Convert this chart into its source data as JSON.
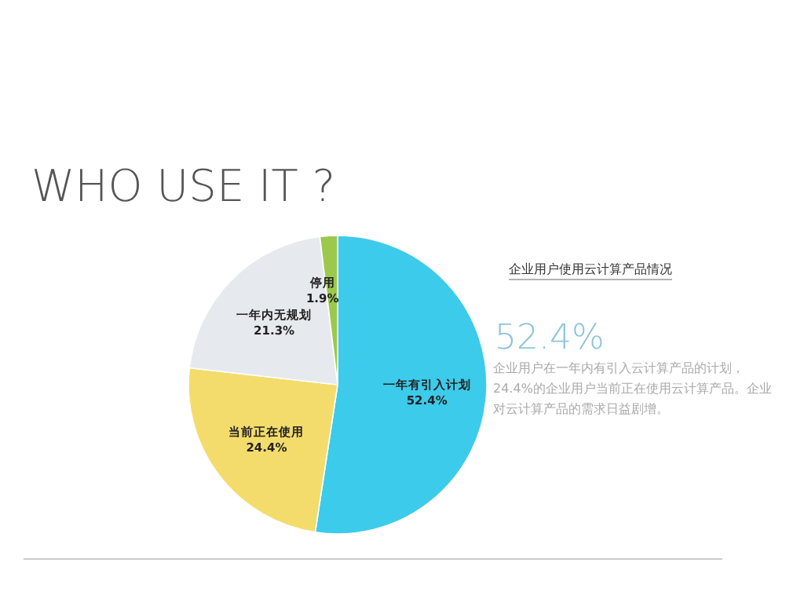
{
  "chart_data": {
    "type": "pie",
    "title": "WHO USE IT ?",
    "subtitle": "企业用户使用云计算产品情况",
    "categories": [
      "一年有引入计划",
      "当前正在使用",
      "一年内无规划",
      "停用"
    ],
    "values": [
      52.4,
      24.4,
      21.3,
      1.9
    ],
    "colors": [
      "#3ccbeb",
      "#f3dc6b",
      "#e6e9ee",
      "#9cc94c"
    ],
    "value_labels": [
      "52.4%",
      "24.4%",
      "21.3%",
      "1.9%"
    ],
    "annotations": [
      "52.4%",
      "企业用户在一年内有引入云计算产品的计划，24.4%的企业用户当前正在使用云计算产品。企业对云计算产品的需求日益剧增。"
    ]
  }
}
